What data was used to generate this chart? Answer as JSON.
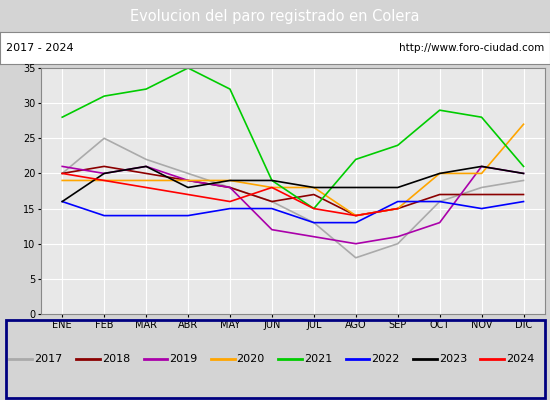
{
  "title": "Evolucion del paro registrado en Colera",
  "subtitle_left": "2017 - 2024",
  "subtitle_right": "http://www.foro-ciudad.com",
  "months": [
    "ENE",
    "FEB",
    "MAR",
    "ABR",
    "MAY",
    "JUN",
    "JUL",
    "AGO",
    "SEP",
    "OCT",
    "NOV",
    "DIC"
  ],
  "ylim": [
    0,
    35
  ],
  "yticks": [
    0,
    5,
    10,
    15,
    20,
    25,
    30,
    35
  ],
  "series": {
    "2017": [
      20,
      25,
      22,
      20,
      18,
      16,
      13,
      8,
      10,
      16,
      18,
      19
    ],
    "2018": [
      20,
      21,
      20,
      19,
      18,
      16,
      17,
      14,
      15,
      17,
      17,
      17
    ],
    "2019": [
      21,
      20,
      21,
      19,
      18,
      12,
      11,
      10,
      11,
      13,
      21,
      20
    ],
    "2020": [
      19,
      19,
      19,
      19,
      19,
      18,
      18,
      14,
      15,
      20,
      20,
      27
    ],
    "2021": [
      28,
      31,
      32,
      35,
      32,
      19,
      15,
      22,
      24,
      29,
      28,
      21
    ],
    "2022": [
      16,
      14,
      14,
      14,
      15,
      15,
      13,
      13,
      16,
      16,
      15,
      16
    ],
    "2023": [
      16,
      20,
      21,
      18,
      19,
      19,
      18,
      18,
      18,
      20,
      21,
      20
    ],
    "2024": [
      20,
      19,
      18,
      17,
      16,
      18,
      15,
      14,
      15,
      null,
      null,
      null
    ]
  },
  "colors": {
    "2017": "#aaaaaa",
    "2018": "#8b0000",
    "2019": "#aa00aa",
    "2020": "#ffa500",
    "2021": "#00cc00",
    "2022": "#0000ff",
    "2023": "#000000",
    "2024": "#ff0000"
  },
  "title_bg": "#4472c4",
  "title_color": "#ffffff",
  "subtitle_bg": "#ffffff",
  "chart_bg": "#d4d4d4",
  "plot_bg": "#e8e8e8",
  "grid_color": "#ffffff",
  "legend_bg": "#ffffff",
  "legend_border": "#000080"
}
